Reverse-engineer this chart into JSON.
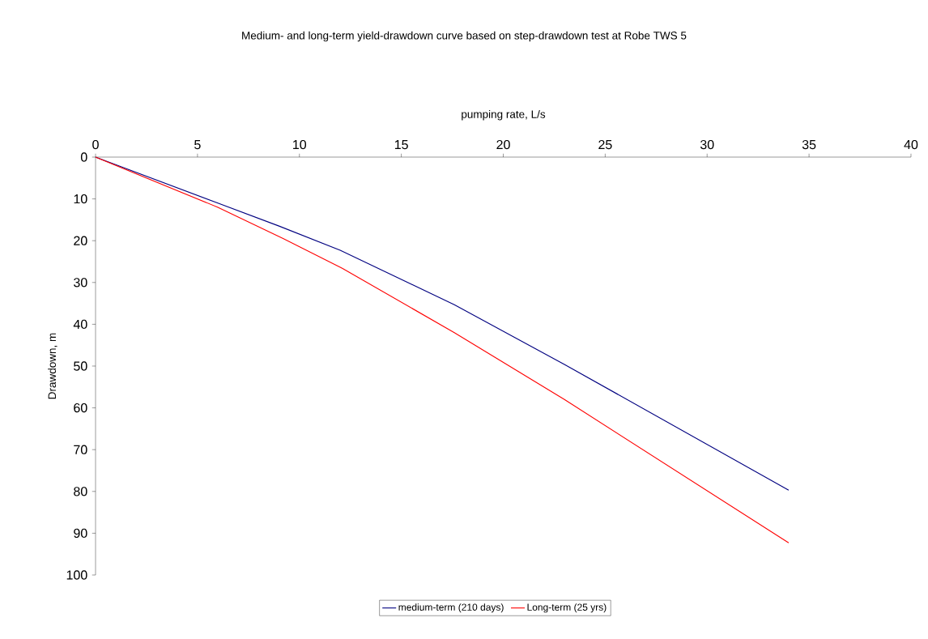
{
  "chart_data": {
    "type": "line",
    "title": "Medium- and long-term yield-drawdown curve based on step-drawdown test at Robe TWS 5",
    "xlabel": "pumping rate, L/s",
    "ylabel": "Drawdown, m",
    "xlim": [
      0,
      40
    ],
    "xticks": [
      0,
      5,
      10,
      15,
      20,
      25,
      30,
      35,
      40
    ],
    "ylim": [
      100,
      0
    ],
    "yticks": [
      0,
      10,
      20,
      30,
      40,
      50,
      60,
      70,
      80,
      90,
      100
    ],
    "legend": "bottom",
    "marker": "none",
    "line_style": "solid",
    "series": [
      {
        "name": "medium-term (210 days)",
        "color": "#000080",
        "x": [
          0,
          6,
          9,
          12,
          17.6,
          23,
          34
        ],
        "values": [
          0,
          11,
          16.5,
          22.3,
          35.3,
          49.6,
          79.7
        ]
      },
      {
        "name": "Long-term (25 yrs)",
        "color": "#ff0000",
        "x": [
          0,
          6,
          9.2,
          12.1,
          17.6,
          23,
          34
        ],
        "values": [
          0,
          12,
          19.5,
          26.6,
          42,
          58,
          92.3
        ]
      }
    ]
  }
}
